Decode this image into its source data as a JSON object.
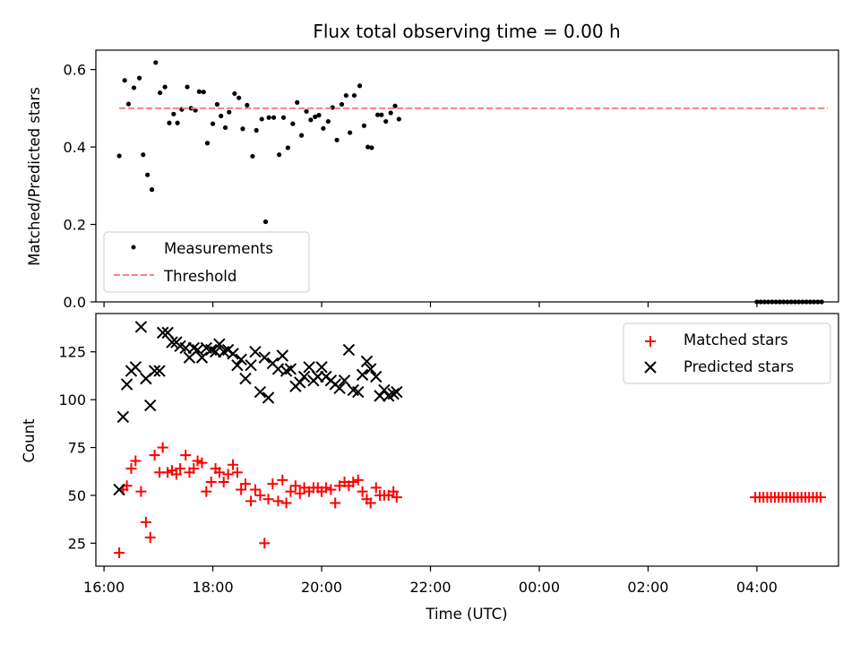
{
  "chart_data": {
    "title": "Flux total observing time = 0.00 h",
    "xlabel": "Time (UTC)",
    "x_unit": "hours of day (UTC)",
    "x_ticks": [
      {
        "value": 16,
        "label": "16:00"
      },
      {
        "value": 18,
        "label": "18:00"
      },
      {
        "value": 20,
        "label": "20:00"
      },
      {
        "value": 22,
        "label": "22:00"
      },
      {
        "value": 24,
        "label": "00:00"
      },
      {
        "value": 26,
        "label": "02:00"
      },
      {
        "value": 28,
        "label": "04:00"
      }
    ],
    "xlim": [
      15.85,
      29.5
    ],
    "panels": [
      {
        "type": "scatter",
        "ylabel": "Matched/Predicted stars",
        "ylim": [
          0,
          0.65
        ],
        "y_ticks": [
          {
            "value": 0.0,
            "label": "0.0"
          },
          {
            "value": 0.2,
            "label": "0.2"
          },
          {
            "value": 0.4,
            "label": "0.4"
          },
          {
            "value": 0.6,
            "label": "0.6"
          }
        ],
        "legend_position": "lower-left",
        "series": [
          {
            "name": "Measurements",
            "marker": "dot",
            "color": "#000000",
            "points": [
              [
                16.28,
                0.377
              ],
              [
                16.38,
                0.572
              ],
              [
                16.45,
                0.511
              ],
              [
                16.55,
                0.553
              ],
              [
                16.65,
                0.578
              ],
              [
                16.72,
                0.38
              ],
              [
                16.8,
                0.328
              ],
              [
                16.88,
                0.29
              ],
              [
                16.95,
                0.618
              ],
              [
                17.03,
                0.54
              ],
              [
                17.12,
                0.555
              ],
              [
                17.2,
                0.462
              ],
              [
                17.28,
                0.485
              ],
              [
                17.35,
                0.462
              ],
              [
                17.43,
                0.497
              ],
              [
                17.53,
                0.555
              ],
              [
                17.6,
                0.5
              ],
              [
                17.68,
                0.495
              ],
              [
                17.75,
                0.543
              ],
              [
                17.83,
                0.542
              ],
              [
                17.9,
                0.41
              ],
              [
                18.0,
                0.46
              ],
              [
                18.08,
                0.51
              ],
              [
                18.15,
                0.48
              ],
              [
                18.23,
                0.45
              ],
              [
                18.3,
                0.49
              ],
              [
                18.4,
                0.538
              ],
              [
                18.48,
                0.527
              ],
              [
                18.55,
                0.447
              ],
              [
                18.63,
                0.508
              ],
              [
                18.73,
                0.376
              ],
              [
                18.8,
                0.443
              ],
              [
                18.9,
                0.472
              ],
              [
                18.97,
                0.207
              ],
              [
                19.03,
                0.476
              ],
              [
                19.12,
                0.476
              ],
              [
                19.22,
                0.38
              ],
              [
                19.3,
                0.476
              ],
              [
                19.38,
                0.398
              ],
              [
                19.47,
                0.46
              ],
              [
                19.55,
                0.515
              ],
              [
                19.63,
                0.43
              ],
              [
                19.72,
                0.492
              ],
              [
                19.8,
                0.47
              ],
              [
                19.88,
                0.478
              ],
              [
                19.95,
                0.482
              ],
              [
                20.03,
                0.448
              ],
              [
                20.12,
                0.466
              ],
              [
                20.2,
                0.502
              ],
              [
                20.28,
                0.418
              ],
              [
                20.37,
                0.51
              ],
              [
                20.45,
                0.533
              ],
              [
                20.52,
                0.437
              ],
              [
                20.6,
                0.533
              ],
              [
                20.7,
                0.558
              ],
              [
                20.78,
                0.455
              ],
              [
                20.85,
                0.4
              ],
              [
                20.92,
                0.398
              ],
              [
                21.03,
                0.483
              ],
              [
                21.1,
                0.483
              ],
              [
                21.18,
                0.466
              ],
              [
                21.27,
                0.488
              ],
              [
                21.35,
                0.506
              ],
              [
                21.42,
                0.472
              ],
              [
                28.0,
                0.0
              ],
              [
                28.07,
                0.0
              ],
              [
                28.14,
                0.0
              ],
              [
                28.21,
                0.0
              ],
              [
                28.28,
                0.0
              ],
              [
                28.35,
                0.0
              ],
              [
                28.42,
                0.0
              ],
              [
                28.49,
                0.0
              ],
              [
                28.56,
                0.0
              ],
              [
                28.63,
                0.0
              ],
              [
                28.7,
                0.0
              ],
              [
                28.77,
                0.0
              ],
              [
                28.84,
                0.0
              ],
              [
                28.91,
                0.0
              ],
              [
                28.98,
                0.0
              ],
              [
                29.05,
                0.0
              ],
              [
                29.12,
                0.0
              ],
              [
                29.19,
                0.0
              ]
            ]
          },
          {
            "name": "Threshold",
            "marker": "dashed-line",
            "color": "#ff7f7f",
            "points": [
              [
                16.28,
                0.5
              ],
              [
                29.3,
                0.5
              ]
            ]
          }
        ]
      },
      {
        "type": "scatter",
        "ylabel": "Count",
        "ylim": [
          13,
          145
        ],
        "y_ticks": [
          {
            "value": 25,
            "label": "25"
          },
          {
            "value": 50,
            "label": "50"
          },
          {
            "value": 75,
            "label": "75"
          },
          {
            "value": 100,
            "label": "100"
          },
          {
            "value": 125,
            "label": "125"
          }
        ],
        "legend_position": "upper-right",
        "series": [
          {
            "name": "Matched stars",
            "marker": "plus",
            "color": "#ff0000",
            "points": [
              [
                16.28,
                20
              ],
              [
                16.35,
                53
              ],
              [
                16.42,
                55
              ],
              [
                16.5,
                64
              ],
              [
                16.58,
                68
              ],
              [
                16.68,
                52
              ],
              [
                16.77,
                36
              ],
              [
                16.85,
                28
              ],
              [
                16.93,
                71
              ],
              [
                17.02,
                62
              ],
              [
                17.08,
                75
              ],
              [
                17.17,
                62
              ],
              [
                17.25,
                63
              ],
              [
                17.33,
                61
              ],
              [
                17.4,
                64
              ],
              [
                17.5,
                71
              ],
              [
                17.57,
                62
              ],
              [
                17.65,
                64
              ],
              [
                17.72,
                68
              ],
              [
                17.8,
                67
              ],
              [
                17.88,
                52
              ],
              [
                17.97,
                57
              ],
              [
                18.05,
                64
              ],
              [
                18.12,
                62
              ],
              [
                18.2,
                57
              ],
              [
                18.28,
                61
              ],
              [
                18.37,
                66
              ],
              [
                18.45,
                62
              ],
              [
                18.52,
                53
              ],
              [
                18.6,
                56
              ],
              [
                18.7,
                47
              ],
              [
                18.78,
                53
              ],
              [
                18.87,
                50
              ],
              [
                18.95,
                25
              ],
              [
                19.02,
                48
              ],
              [
                19.1,
                56
              ],
              [
                19.2,
                47
              ],
              [
                19.28,
                58
              ],
              [
                19.35,
                46
              ],
              [
                19.43,
                52
              ],
              [
                19.52,
                55
              ],
              [
                19.6,
                51
              ],
              [
                19.68,
                54
              ],
              [
                19.77,
                52
              ],
              [
                19.85,
                54
              ],
              [
                19.93,
                54
              ],
              [
                20.0,
                52
              ],
              [
                20.08,
                54
              ],
              [
                20.17,
                53
              ],
              [
                20.25,
                46
              ],
              [
                20.33,
                55
              ],
              [
                20.42,
                57
              ],
              [
                20.5,
                55
              ],
              [
                20.58,
                57
              ],
              [
                20.67,
                58
              ],
              [
                20.75,
                52
              ],
              [
                20.83,
                48
              ],
              [
                20.9,
                46
              ],
              [
                21.0,
                54
              ],
              [
                21.07,
                50
              ],
              [
                21.15,
                50
              ],
              [
                21.23,
                50
              ],
              [
                21.32,
                52
              ],
              [
                21.38,
                49
              ],
              [
                27.97,
                49
              ],
              [
                28.05,
                49
              ],
              [
                28.12,
                49
              ],
              [
                28.19,
                49
              ],
              [
                28.26,
                49
              ],
              [
                28.33,
                49
              ],
              [
                28.4,
                49
              ],
              [
                28.47,
                49
              ],
              [
                28.54,
                49
              ],
              [
                28.61,
                49
              ],
              [
                28.68,
                49
              ],
              [
                28.75,
                49
              ],
              [
                28.82,
                49
              ],
              [
                28.89,
                49
              ],
              [
                28.96,
                49
              ],
              [
                29.03,
                49
              ],
              [
                29.1,
                49
              ],
              [
                29.17,
                49
              ]
            ]
          },
          {
            "name": "Predicted stars",
            "marker": "x",
            "color": "#000000",
            "points": [
              [
                16.28,
                53
              ],
              [
                16.35,
                91
              ],
              [
                16.42,
                108
              ],
              [
                16.5,
                115
              ],
              [
                16.58,
                117
              ],
              [
                16.68,
                138
              ],
              [
                16.77,
                111
              ],
              [
                16.85,
                97
              ],
              [
                16.93,
                115
              ],
              [
                17.02,
                115
              ],
              [
                17.08,
                135
              ],
              [
                17.17,
                135
              ],
              [
                17.25,
                130
              ],
              [
                17.33,
                130
              ],
              [
                17.4,
                128
              ],
              [
                17.5,
                127
              ],
              [
                17.57,
                122
              ],
              [
                17.65,
                127
              ],
              [
                17.72,
                126
              ],
              [
                17.8,
                122
              ],
              [
                17.88,
                127
              ],
              [
                17.97,
                126
              ],
              [
                18.05,
                125
              ],
              [
                18.12,
                129
              ],
              [
                18.2,
                125
              ],
              [
                18.28,
                126
              ],
              [
                18.37,
                124
              ],
              [
                18.45,
                118
              ],
              [
                18.52,
                121
              ],
              [
                18.6,
                111
              ],
              [
                18.7,
                118
              ],
              [
                18.78,
                125
              ],
              [
                18.87,
                104
              ],
              [
                18.95,
                122
              ],
              [
                19.02,
                101
              ],
              [
                19.1,
                119
              ],
              [
                19.2,
                116
              ],
              [
                19.28,
                123
              ],
              [
                19.35,
                115
              ],
              [
                19.43,
                116
              ],
              [
                19.52,
                107
              ],
              [
                19.6,
                109
              ],
              [
                19.68,
                112
              ],
              [
                19.77,
                117
              ],
              [
                19.85,
                110
              ],
              [
                19.93,
                112
              ],
              [
                20.0,
                117
              ],
              [
                20.08,
                112
              ],
              [
                20.17,
                110
              ],
              [
                20.25,
                108
              ],
              [
                20.33,
                106
              ],
              [
                20.42,
                110
              ],
              [
                20.5,
                126
              ],
              [
                20.58,
                105
              ],
              [
                20.67,
                104
              ],
              [
                20.75,
                113
              ],
              [
                20.83,
                120
              ],
              [
                20.9,
                116
              ],
              [
                21.0,
                112
              ],
              [
                21.07,
                102
              ],
              [
                21.15,
                105
              ],
              [
                21.23,
                102
              ],
              [
                21.32,
                103
              ],
              [
                21.38,
                104
              ]
            ]
          }
        ]
      }
    ]
  }
}
